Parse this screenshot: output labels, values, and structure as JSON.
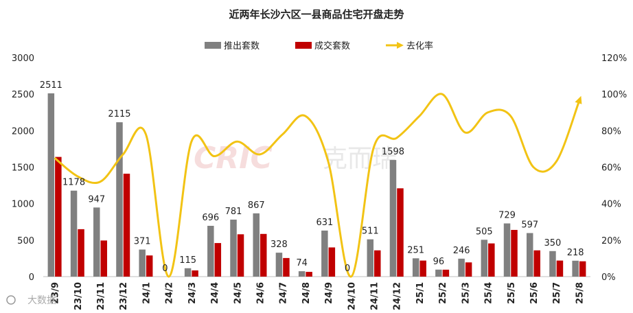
{
  "chart_data": {
    "type": "bar+line",
    "title": "近两年长沙六区一县商品住宅开盘走势",
    "categories": [
      "23/9",
      "23/10",
      "23/11",
      "23/12",
      "24/1",
      "24/2",
      "24/3",
      "24/4",
      "24/5",
      "24/6",
      "24/7",
      "24/8",
      "24/9",
      "24/10",
      "24/11",
      "24/12",
      "25/1",
      "25/2",
      "25/3",
      "25/4",
      "25/5",
      "25/6",
      "25/7",
      "25/8"
    ],
    "series": [
      {
        "name": "推出套数",
        "type": "bar",
        "axis": "left",
        "color": "#808080",
        "values": [
          2511,
          1178,
          947,
          2115,
          371,
          0,
          115,
          696,
          781,
          867,
          328,
          74,
          631,
          0,
          511,
          1598,
          251,
          96,
          246,
          505,
          729,
          597,
          350,
          218
        ]
      },
      {
        "name": "成交套数",
        "type": "bar",
        "axis": "left",
        "color": "#c00000",
        "values": [
          1640,
          650,
          495,
          1410,
          290,
          0,
          85,
          460,
          580,
          585,
          255,
          65,
          400,
          0,
          360,
          1210,
          220,
          95,
          195,
          455,
          640,
          360,
          220,
          210
        ]
      },
      {
        "name": "去化率",
        "type": "line",
        "axis": "right",
        "color": "#f2c314",
        "values": [
          0.65,
          0.55,
          0.52,
          0.67,
          0.78,
          0.0,
          0.74,
          0.66,
          0.74,
          0.67,
          0.78,
          0.88,
          0.63,
          0.0,
          0.71,
          0.76,
          0.88,
          1.0,
          0.79,
          0.9,
          0.88,
          0.6,
          0.63,
          0.96
        ]
      }
    ],
    "left_axis": {
      "min": 0,
      "max": 3000,
      "step": 500,
      "ticks": [
        "0",
        "500",
        "1000",
        "1500",
        "2000",
        "2500",
        "3000"
      ]
    },
    "right_axis": {
      "min": 0,
      "max": 1.2,
      "step": 0.2,
      "ticks": [
        "0%",
        "20%",
        "40%",
        "60%",
        "80%",
        "100%",
        "120%"
      ]
    },
    "legend": {
      "position": "top",
      "items": [
        "推出套数",
        "成交套数",
        "去化率"
      ]
    },
    "grid": false
  },
  "watermark": {
    "brand_latin": "CRIC",
    "brand_cn": "克而瑞"
  },
  "footer_logo": {
    "text": "大数据"
  }
}
